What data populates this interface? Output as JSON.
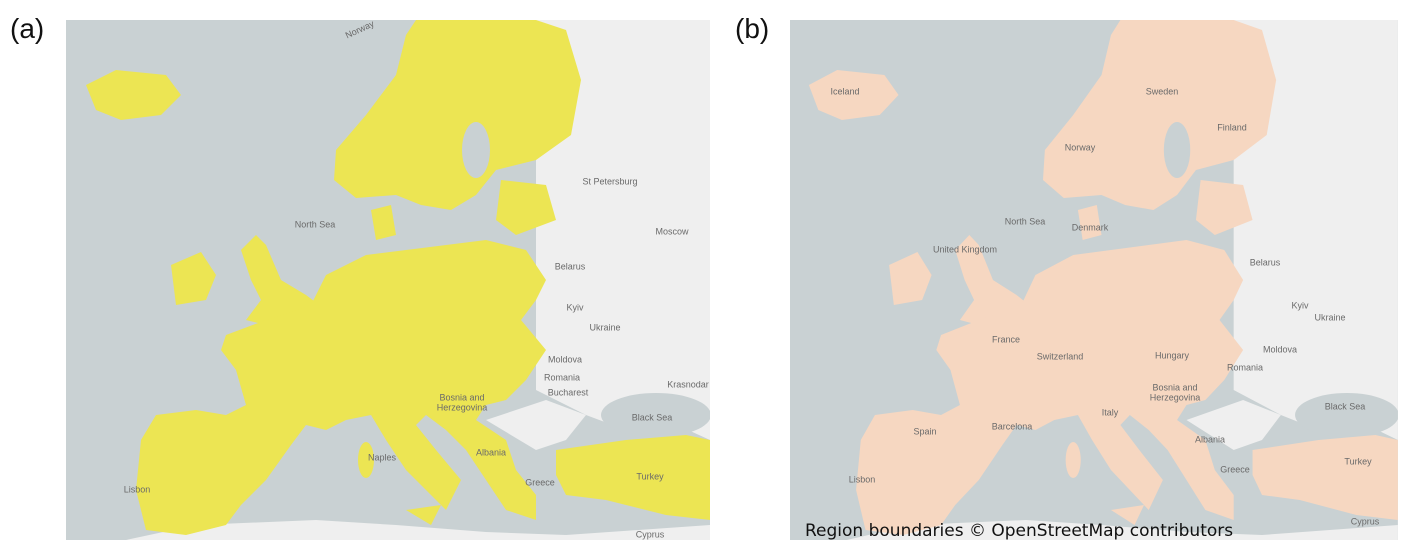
{
  "panels": [
    {
      "label": "(a)",
      "map_labels": [
        "Norway",
        "North Sea",
        "Belarus",
        "Kyiv",
        "Ukraine",
        "Moldova",
        "Romania",
        "Bucharest",
        "Bosnia and",
        "Herzegovina",
        "Albania",
        "Greece",
        "Black Sea",
        "Krasnodar",
        "Turkey",
        "Naples",
        "Lisbon",
        "Cyprus",
        "St Petersburg",
        "Moscow"
      ]
    },
    {
      "label": "(b)",
      "map_labels": [
        "Iceland",
        "Sweden",
        "Norway",
        "Finland",
        "North Sea",
        "Denmark",
        "United Kingdom",
        "Belarus",
        "Kyiv",
        "Ukraine",
        "France",
        "Switzerland",
        "Hungary",
        "Moldova",
        "Romania",
        "Bosnia and",
        "Herzegovina",
        "Black Sea",
        "Italy",
        "Spain",
        "Barcelona",
        "Albania",
        "Greece",
        "Turkey",
        "Lisbon",
        "Cyprus"
      ],
      "attribution": "Region boundaries © OpenStreetMap contributors"
    }
  ]
}
